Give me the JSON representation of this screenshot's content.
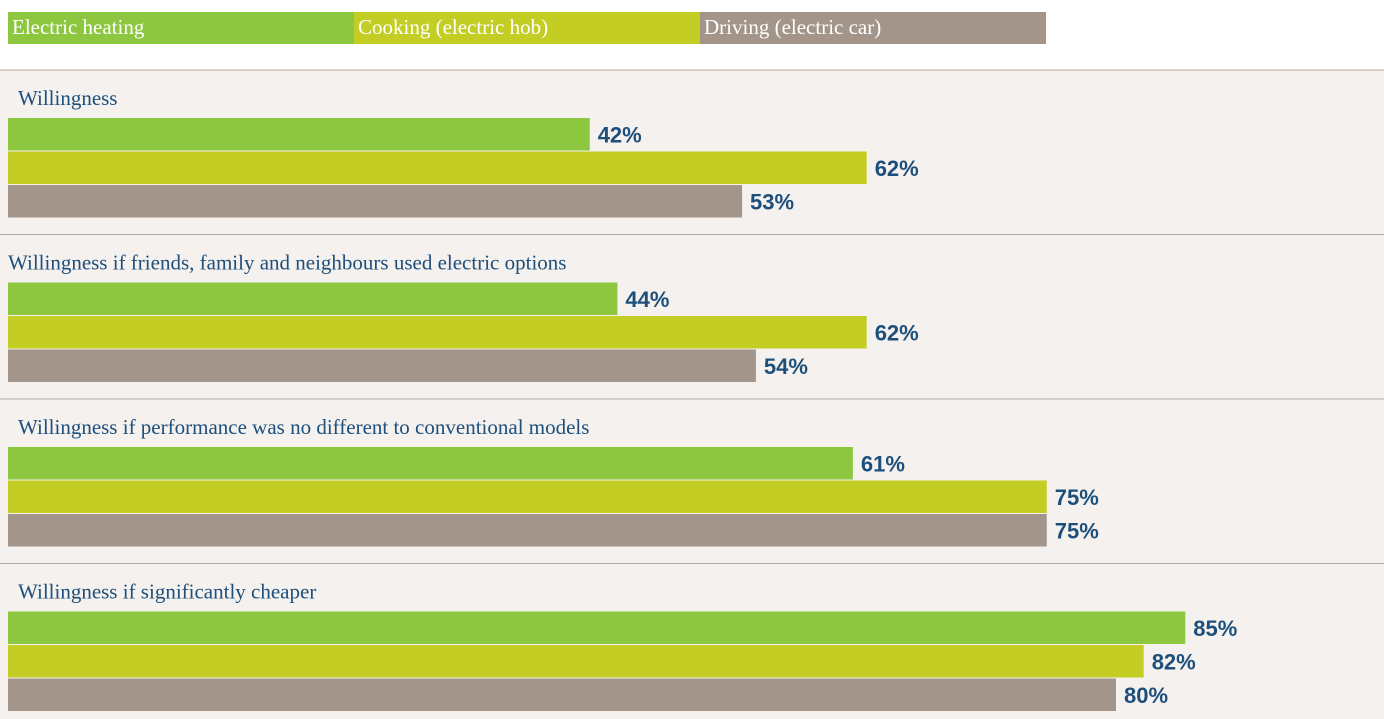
{
  "chart_data": {
    "type": "hbar",
    "categories": [
      "Willingness",
      "Willingness if friends, family and neighbours used electric options",
      "Willingness if performance was no different to conventional models",
      "Willingness if significantly cheaper"
    ],
    "series": [
      {
        "name": "Electric heating",
        "color": "#8dc63f",
        "values": [
          42,
          44,
          61,
          85
        ],
        "value_labels": [
          "42%",
          "44%",
          "61%",
          "85%"
        ]
      },
      {
        "name": "Cooking (electric hob)",
        "color": "#c3cd23",
        "values": [
          62,
          62,
          75,
          82
        ],
        "value_labels": [
          "62%",
          "62%",
          "75%",
          "82%"
        ]
      },
      {
        "name": "Driving (electric car)",
        "color": "#a39589",
        "values": [
          53,
          54,
          75,
          80
        ],
        "value_labels": [
          "53%",
          "54%",
          "75%",
          "80%"
        ]
      }
    ],
    "xlim": [
      0,
      100
    ]
  }
}
